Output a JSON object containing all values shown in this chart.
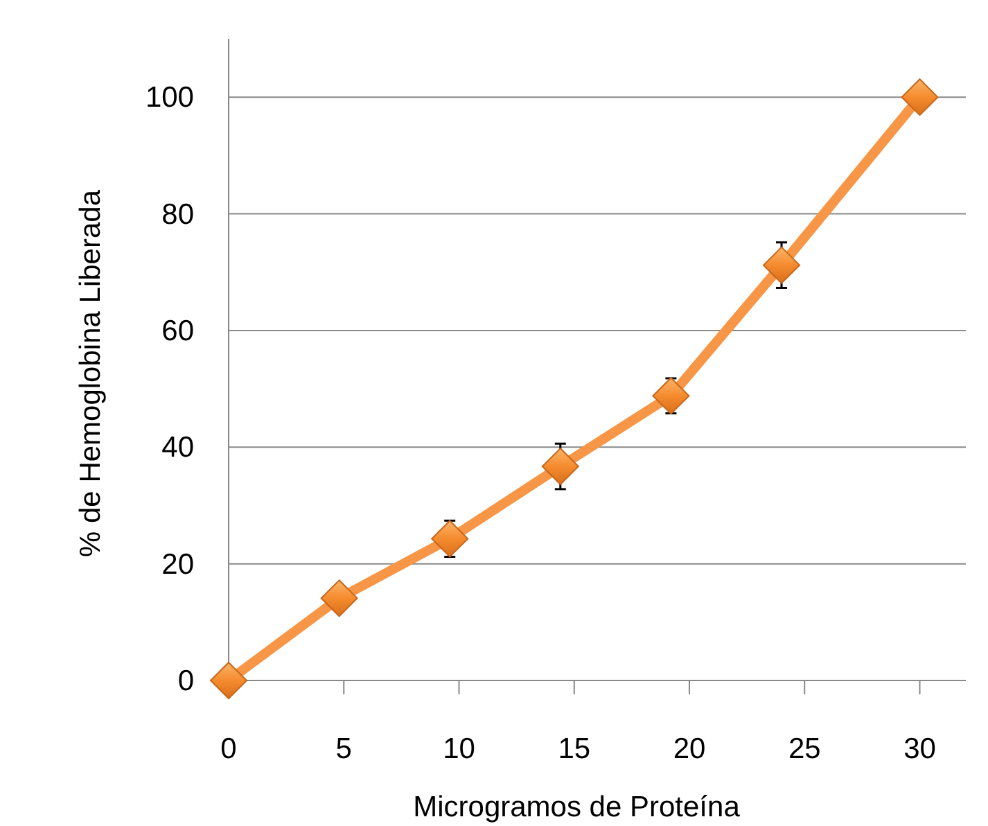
{
  "chart_data": {
    "type": "line",
    "xlabel": "Microgramos de Proteína",
    "ylabel": "% de Hemoglobina Liberada",
    "x": [
      0,
      4.8,
      9.6,
      14.4,
      19.2,
      24,
      30
    ],
    "series": [
      {
        "color": "#f79646",
        "values": [
          0,
          14.1,
          24.3,
          36.7,
          48.8,
          71.2,
          100
        ],
        "errors": [
          null,
          null,
          3.1,
          3.9,
          3.0,
          3.9,
          null
        ]
      }
    ],
    "xlim": [
      0,
      32
    ],
    "xticks": [
      0,
      5,
      10,
      15,
      20,
      25,
      30
    ],
    "ylim": [
      0,
      110
    ],
    "yticks": [
      0,
      20,
      40,
      60,
      80,
      100
    ],
    "grid": "y",
    "marker": "diamond",
    "line_style": "solid"
  }
}
